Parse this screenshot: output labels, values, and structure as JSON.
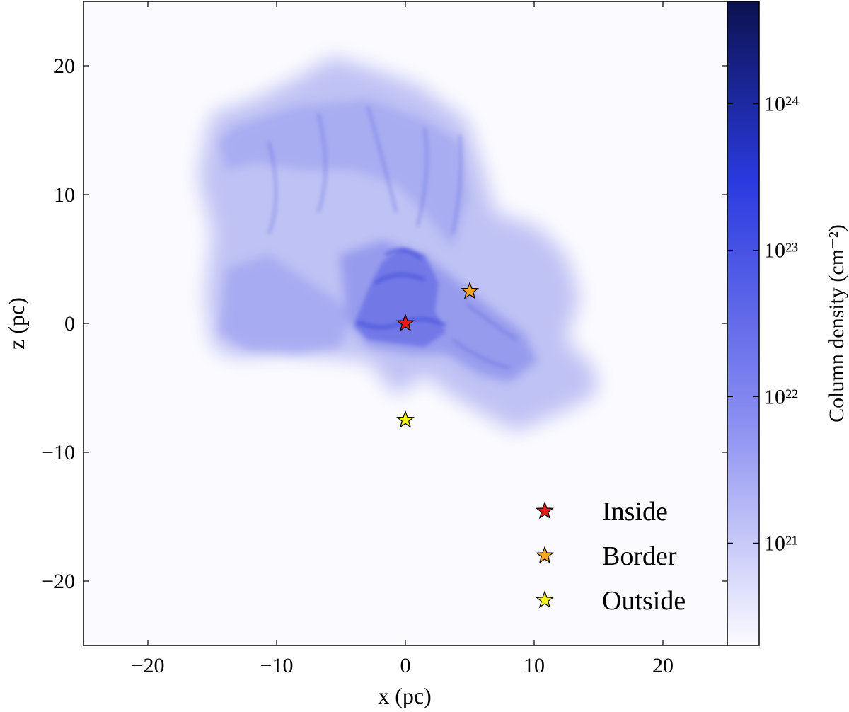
{
  "chart_data": {
    "type": "heatmap",
    "title": "",
    "xlabel": "x (pc)",
    "ylabel": "z (pc)",
    "xlim": [
      -25,
      25
    ],
    "ylim": [
      -25,
      25
    ],
    "xticks": [
      {
        "value": -20,
        "label": "−20"
      },
      {
        "value": -10,
        "label": "−10"
      },
      {
        "value": 0,
        "label": "0"
      },
      {
        "value": 10,
        "label": "10"
      },
      {
        "value": 20,
        "label": "20"
      }
    ],
    "yticks": [
      {
        "value": 20,
        "label": "20"
      },
      {
        "value": 10,
        "label": "10"
      },
      {
        "value": 0,
        "label": "0"
      },
      {
        "value": -10,
        "label": "−10"
      },
      {
        "value": -20,
        "label": "−20"
      }
    ],
    "colorbar": {
      "label": "Column density (cm⁻²)",
      "scale": "log",
      "range": [
        2e+20,
        5e+24
      ],
      "ticks": [
        {
          "value": 1e+21,
          "label": "10²¹"
        },
        {
          "value": 1e+22,
          "label": "10²²"
        },
        {
          "value": 1e+23,
          "label": "10²³"
        },
        {
          "value": 1e+24,
          "label": "10²⁴"
        }
      ],
      "colors": [
        "#fbfbff",
        "#8a8ef0",
        "#2b3ae0",
        "#0b1250"
      ]
    },
    "series": [
      {
        "name": "Inside",
        "marker": "star",
        "color": "#e8191a",
        "x": 0,
        "y": 0
      },
      {
        "name": "Border",
        "marker": "star",
        "color": "#f5a623",
        "x": 5,
        "y": 2.5
      },
      {
        "name": "Outside",
        "marker": "star",
        "color": "#f7f21c",
        "x": 0,
        "y": -7.5
      }
    ],
    "legend": {
      "position": "lower-right"
    },
    "grid": false
  }
}
